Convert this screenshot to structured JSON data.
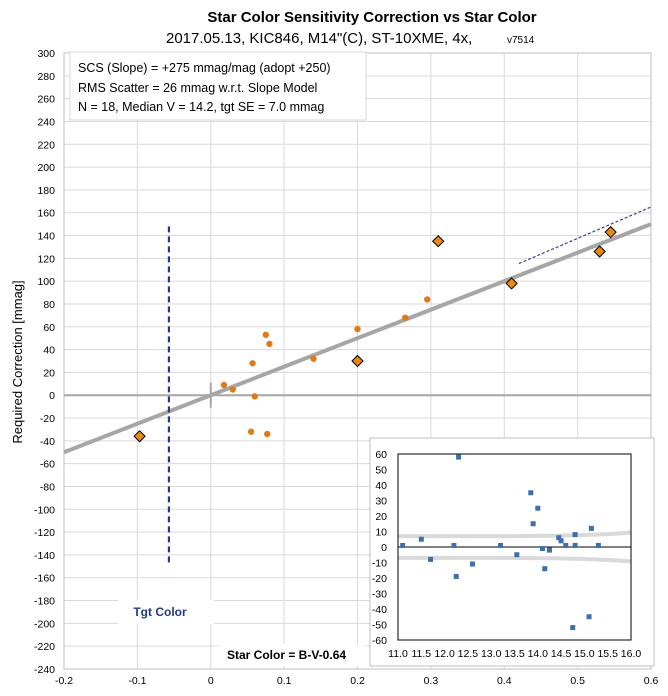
{
  "chart_data": [
    {
      "type": "scatter",
      "title": "Star Color Sensitivity Correction vs Star Color",
      "subtitle": "2017.05.13, KIC846, M14\"(C), ST-10XME, 4x,",
      "subtitle_version": "v7514",
      "ylabel": "Required Correction [mmag]",
      "xlim": [
        -0.2,
        0.6
      ],
      "ylim": [
        -240,
        300
      ],
      "x_ticks": [
        "-0.2",
        "-0.1",
        "0",
        "0.1",
        "0.2",
        "0.3",
        "0.4",
        "0.5",
        "0.6"
      ],
      "y_ticks": [
        "-240",
        "-220",
        "-200",
        "-180",
        "-160",
        "-140",
        "-120",
        "-100",
        "-80",
        "-60",
        "-40",
        "-20",
        "0",
        "20",
        "40",
        "60",
        "80",
        "100",
        "120",
        "140",
        "160",
        "180",
        "200",
        "220",
        "240",
        "260",
        "280",
        "300"
      ],
      "grid": true,
      "annotations": {
        "line1": "SCS (Slope)  = +275 mmag/mag (adopt +250)",
        "line2": "RMS Scatter = 26 mmag w.r.t. Slope Model",
        "line3": "N = 18,  Median V = 14.2, tgt SE = 7.0 mmag",
        "tgt_color_label": "Tgt Color",
        "star_color_label": "Star Color = B-V-0.64"
      },
      "tgt_color_x": -0.057,
      "fit_line": {
        "slope": 250,
        "x_range": [
          -0.2,
          0.6
        ]
      },
      "dashed_fit_line": {
        "slope": 275,
        "x_range": [
          0.42,
          0.6
        ]
      },
      "series": [
        {
          "marker": "circle",
          "color": "#e07b1a",
          "points": [
            [
              0.018,
              9
            ],
            [
              0.03,
              5
            ],
            [
              0.057,
              28
            ],
            [
              0.06,
              -1
            ],
            [
              0.055,
              -32
            ],
            [
              0.075,
              53
            ],
            [
              0.08,
              45
            ],
            [
              0.077,
              -34
            ],
            [
              0.14,
              32
            ],
            [
              0.2,
              58
            ],
            [
              0.265,
              68
            ],
            [
              0.295,
              84
            ]
          ]
        },
        {
          "marker": "diamond",
          "color": "#e88a12",
          "points": [
            [
              -0.097,
              -36
            ],
            [
              0.2,
              30
            ],
            [
              0.31,
              135
            ],
            [
              0.41,
              98
            ],
            [
              0.53,
              126
            ],
            [
              0.545,
              143
            ]
          ]
        }
      ],
      "colors": {
        "fit": "#a6a6a6",
        "dashed_fit": "#3f3f8f",
        "tgt_line": "#1f3c88",
        "grid": "#d9d9d9"
      }
    },
    {
      "type": "scatter",
      "xlim": [
        11.0,
        16.0
      ],
      "ylim": [
        -60,
        60
      ],
      "x_ticks": [
        "11.0",
        "11.5",
        "12.0",
        "12.5",
        "13.0",
        "13.5",
        "14.0",
        "14.5",
        "15.0",
        "15.5",
        "16.0"
      ],
      "y_ticks": [
        "-60",
        "-50",
        "-40",
        "-30",
        "-20",
        "-10",
        "0",
        "10",
        "20",
        "30",
        "40",
        "50",
        "60"
      ],
      "marker": "square",
      "color": "#3f6fa8",
      "points": [
        [
          11.1,
          1
        ],
        [
          11.5,
          5
        ],
        [
          11.7,
          -8
        ],
        [
          12.2,
          1
        ],
        [
          12.25,
          -19
        ],
        [
          12.3,
          58
        ],
        [
          12.6,
          -11
        ],
        [
          13.2,
          1
        ],
        [
          13.55,
          -5
        ],
        [
          13.85,
          35
        ],
        [
          13.9,
          15
        ],
        [
          14.0,
          25
        ],
        [
          14.1,
          -1
        ],
        [
          14.15,
          -14
        ],
        [
          14.25,
          -2
        ],
        [
          14.45,
          6
        ],
        [
          14.5,
          4
        ],
        [
          14.6,
          1
        ],
        [
          14.75,
          -52
        ],
        [
          14.8,
          1
        ],
        [
          14.8,
          8
        ],
        [
          15.1,
          -45
        ],
        [
          15.15,
          12
        ],
        [
          15.3,
          1
        ]
      ],
      "envelope_color": "#d9d9d9"
    }
  ]
}
